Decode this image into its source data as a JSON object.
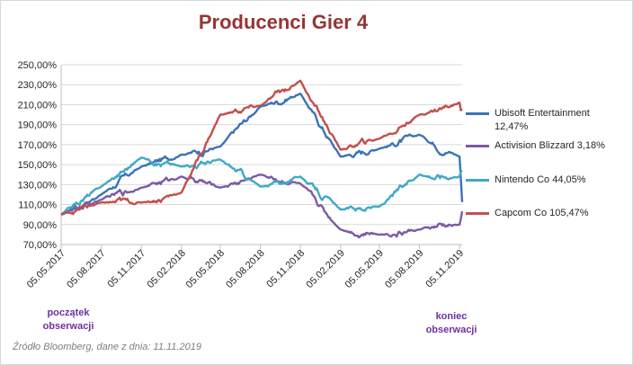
{
  "chart_data": {
    "type": "line",
    "title": "Producenci Gier 4",
    "ylim": [
      70,
      250
    ],
    "y_ticks": [
      "250,00%",
      "230,00%",
      "210,00%",
      "190,00%",
      "170,00%",
      "150,00%",
      "130,00%",
      "110,00%",
      "90,00%",
      "70,00%"
    ],
    "y_tick_values": [
      250,
      230,
      210,
      190,
      170,
      150,
      130,
      110,
      90,
      70
    ],
    "x_ticks": [
      "05.05.2017",
      "05.08.2017",
      "05.11.2017",
      "05.02.2018",
      "05.05.2018",
      "05.08.2018",
      "05.11.2018",
      "05.02.2019",
      "05.05.2019",
      "05.08.2019",
      "05.11.2019"
    ],
    "x_dates": [
      "2017-05-05",
      "2017-08-05",
      "2017-11-05",
      "2018-02-05",
      "2018-05-05",
      "2018-08-05",
      "2018-11-05",
      "2019-02-05",
      "2019-05-05",
      "2019-08-05",
      "2019-11-05",
      "2019-11-11"
    ],
    "series": [
      {
        "name": "Ubisoft Entertainment 12,47%",
        "color": "#3b74b5",
        "values": [
          100,
          120,
          148,
          160,
          168,
          208,
          221,
          158,
          166,
          180,
          158,
          112.5
        ]
      },
      {
        "name": "Activision Blizzard 3,18%",
        "color": "#7d5aa5",
        "values": [
          100,
          115,
          127,
          138,
          127,
          140,
          131,
          85,
          80,
          85,
          90,
          103.2
        ]
      },
      {
        "name": "Nintendo Co 44,05%",
        "color": "#3fa9c6",
        "values": [
          100,
          128,
          157,
          148,
          155,
          128,
          138,
          105,
          108,
          140,
          138,
          144
        ]
      },
      {
        "name": "Capcom Co 105,47%",
        "color": "#c0504d",
        "values": [
          100,
          112,
          112,
          122,
          200,
          209,
          234,
          165,
          176,
          200,
          212,
          205.5
        ]
      }
    ]
  },
  "legend": [
    {
      "line1": "Ubisoft Entertainment",
      "line2": "12,47%",
      "color": "#3b74b5"
    },
    {
      "line1": "Activision Blizzard 3,18%",
      "line2": "",
      "color": "#7d5aa5"
    },
    {
      "line1": "Nintendo Co 44,05%",
      "line2": "",
      "color": "#3fa9c6"
    },
    {
      "line1": "Capcom Co 105,47%",
      "line2": "",
      "color": "#c0504d"
    }
  ],
  "annotations": {
    "start": [
      "początek",
      "obserwacji"
    ],
    "end": [
      "koniec",
      "obserwacji"
    ]
  },
  "source": "Źródło Bloomberg, dane z dnia: 11.11.2019"
}
